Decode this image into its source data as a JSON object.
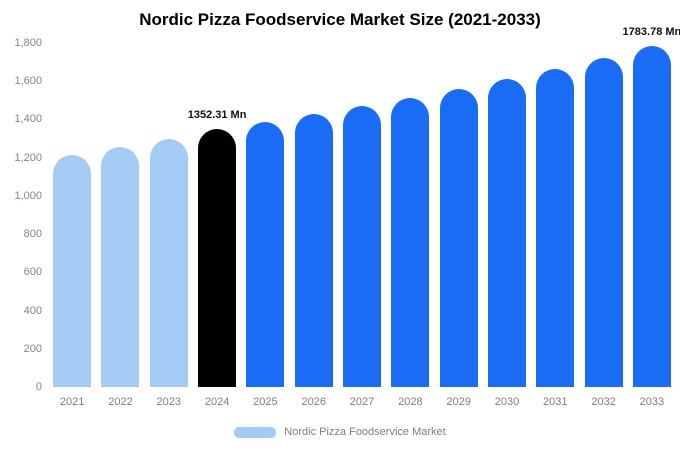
{
  "chart_data": {
    "type": "bar",
    "title": "Nordic Pizza Foodservice Market Size (2021-2033)",
    "categories": [
      "2021",
      "2022",
      "2023",
      "2024",
      "2025",
      "2026",
      "2027",
      "2028",
      "2029",
      "2030",
      "2031",
      "2032",
      "2033"
    ],
    "values": [
      1213,
      1256,
      1297,
      1352.31,
      1387,
      1428,
      1469,
      1514,
      1561,
      1614,
      1662,
      1719,
      1783.78
    ],
    "unit": "Mn",
    "ylim": [
      0,
      1800
    ],
    "ytick_values": [
      0,
      200,
      400,
      600,
      800,
      1000,
      1200,
      1400,
      1600,
      1800
    ],
    "ytick_labels": [
      "0",
      "200",
      "400",
      "600",
      "800",
      "1,000",
      "1,200",
      "1,400",
      "1,600",
      "1,800"
    ],
    "grid": false,
    "legend": {
      "label": "Nordic Pizza Foodservice Market",
      "position": "bottom"
    },
    "bar_styles": [
      "light",
      "light",
      "light",
      "highlight",
      "primary",
      "primary",
      "primary",
      "primary",
      "primary",
      "primary",
      "primary",
      "primary",
      "primary"
    ],
    "colors": {
      "light": "#A3CBF4",
      "primary": "#1A6CF5",
      "highlight": "#000000"
    },
    "annotations": [
      {
        "category": "2024",
        "text": "1352.31 Mn"
      },
      {
        "category": "2033",
        "text": "1783.78 Mn"
      }
    ]
  }
}
